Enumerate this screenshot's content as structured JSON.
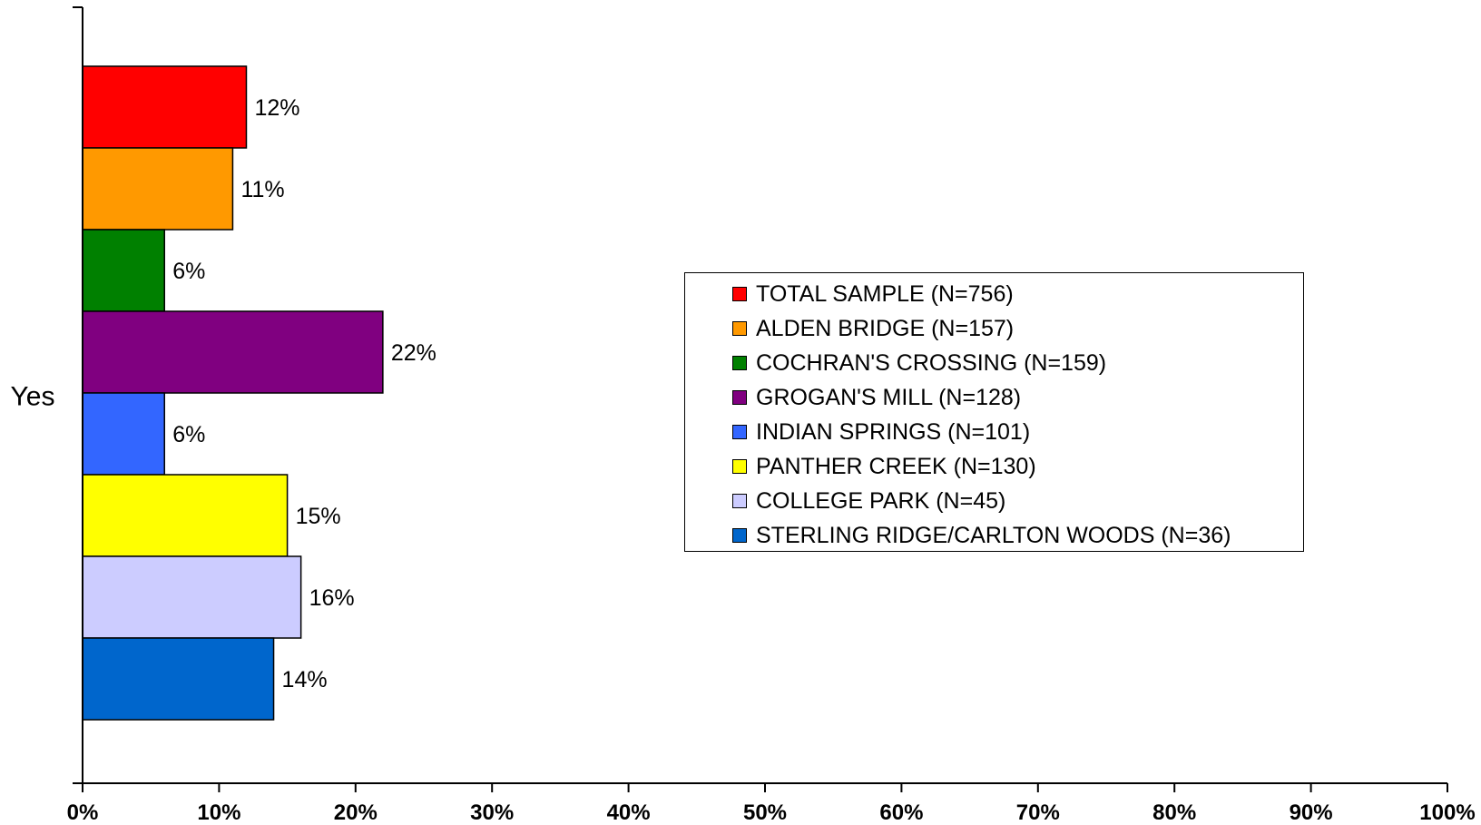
{
  "chart_data": {
    "type": "bar",
    "orientation": "horizontal",
    "categories": [
      "Yes"
    ],
    "series": [
      {
        "name": "TOTAL SAMPLE (N=756)",
        "values": [
          12
        ],
        "label": "12%",
        "color": "#ff0000"
      },
      {
        "name": "ALDEN BRIDGE (N=157)",
        "values": [
          11
        ],
        "label": "11%",
        "color": "#ff9900"
      },
      {
        "name": "COCHRAN'S CROSSING (N=159)",
        "values": [
          6
        ],
        "label": "6%",
        "color": "#008000"
      },
      {
        "name": "GROGAN'S MILL (N=128)",
        "values": [
          22
        ],
        "label": "22%",
        "color": "#800080"
      },
      {
        "name": "INDIAN SPRINGS (N=101)",
        "values": [
          6
        ],
        "label": "6%",
        "color": "#3366ff"
      },
      {
        "name": "PANTHER CREEK (N=130)",
        "values": [
          15
        ],
        "label": "15%",
        "color": "#ffff00"
      },
      {
        "name": "COLLEGE PARK (N=45)",
        "values": [
          16
        ],
        "label": "16%",
        "color": "#ccccff"
      },
      {
        "name": "STERLING RIDGE/CARLTON WOODS (N=36)",
        "values": [
          14
        ],
        "label": "14%",
        "color": "#0066cc"
      }
    ],
    "xlim": [
      0,
      100
    ],
    "x_ticks": [
      "0%",
      "10%",
      "20%",
      "30%",
      "40%",
      "50%",
      "60%",
      "70%",
      "80%",
      "90%",
      "100%"
    ],
    "title": "",
    "xlabel": "",
    "ylabel": "",
    "grid": false,
    "legend_position": "right"
  }
}
